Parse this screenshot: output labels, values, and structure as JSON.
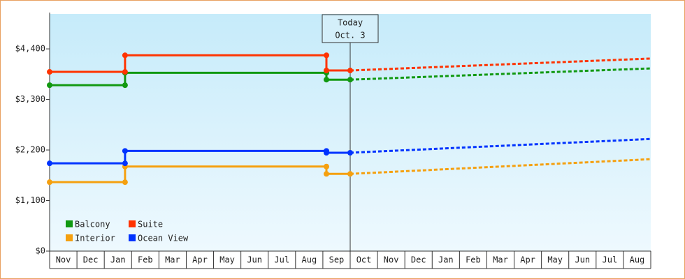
{
  "chart_data": {
    "type": "line",
    "xlim": [
      0,
      22
    ],
    "xticks": [
      {
        "value": 0.5,
        "label": "Nov"
      },
      {
        "value": 1.5,
        "label": "Dec"
      },
      {
        "value": 2.5,
        "label": "Jan"
      },
      {
        "value": 3.5,
        "label": "Feb"
      },
      {
        "value": 4.5,
        "label": "Mar"
      },
      {
        "value": 5.5,
        "label": "Apr"
      },
      {
        "value": 6.5,
        "label": "May"
      },
      {
        "value": 7.5,
        "label": "Jun"
      },
      {
        "value": 8.5,
        "label": "Jul"
      },
      {
        "value": 9.5,
        "label": "Aug"
      },
      {
        "value": 10.5,
        "label": "Sep"
      },
      {
        "value": 11.5,
        "label": "Oct"
      },
      {
        "value": 12.5,
        "label": "Nov"
      },
      {
        "value": 13.5,
        "label": "Dec"
      },
      {
        "value": 14.5,
        "label": "Jan"
      },
      {
        "value": 15.5,
        "label": "Feb"
      },
      {
        "value": 16.5,
        "label": "Mar"
      },
      {
        "value": 17.5,
        "label": "Apr"
      },
      {
        "value": 18.5,
        "label": "May"
      },
      {
        "value": 19.5,
        "label": "Jun"
      },
      {
        "value": 20.5,
        "label": "Jul"
      },
      {
        "value": 21.5,
        "label": "Aug"
      }
    ],
    "ylim": [
      0,
      5160
    ],
    "yticks": [
      {
        "value": 0,
        "label": "$0"
      },
      {
        "value": 1100,
        "label": "$1,100"
      },
      {
        "value": 2200,
        "label": "$2,200"
      },
      {
        "value": 3300,
        "label": "$3,300"
      },
      {
        "value": 4400,
        "label": "$4,400"
      }
    ],
    "annotation": {
      "x": 11,
      "title": "Today",
      "date": "Oct. 3"
    },
    "legend": "lower left",
    "series": [
      {
        "name": "Balcony",
        "color": "#119911",
        "x": [
          0,
          2.76,
          2.76,
          10.13,
          10.13,
          11
        ],
        "values": [
          3610,
          3610,
          3880,
          3880,
          3730,
          3730
        ],
        "projection": {
          "x": [
            11,
            22
          ],
          "values": [
            3730,
            3975
          ]
        }
      },
      {
        "name": "Suite",
        "color": "#ff3300",
        "x": [
          0,
          2.76,
          2.76,
          10.13,
          10.13,
          11
        ],
        "values": [
          3900,
          3900,
          4260,
          4260,
          3930,
          3930
        ],
        "projection": {
          "x": [
            11,
            22
          ],
          "values": [
            3930,
            4190
          ]
        }
      },
      {
        "name": "Interior",
        "color": "#f5a00f",
        "x": [
          0,
          2.76,
          2.76,
          10.13,
          10.13,
          11
        ],
        "values": [
          1500,
          1500,
          1840,
          1840,
          1680,
          1680
        ],
        "projection": {
          "x": [
            11,
            22
          ],
          "values": [
            1680,
            2000
          ]
        }
      },
      {
        "name": "Ocean View",
        "color": "#0033ff",
        "x": [
          0,
          2.76,
          2.76,
          10.13,
          10.13,
          11
        ],
        "values": [
          1910,
          1910,
          2180,
          2180,
          2140,
          2140
        ],
        "projection": {
          "x": [
            11,
            22
          ],
          "values": [
            2140,
            2440
          ]
        }
      }
    ]
  }
}
